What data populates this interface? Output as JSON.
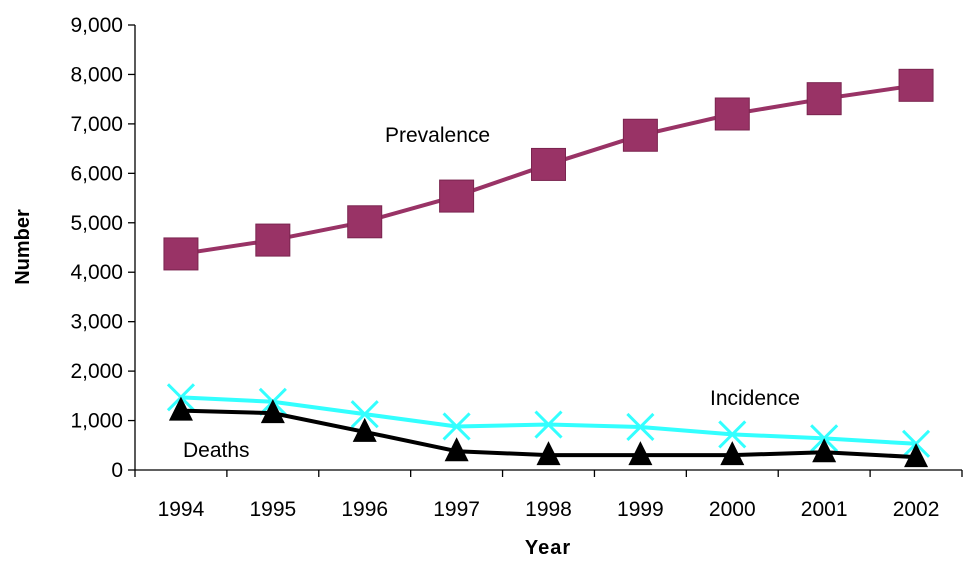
{
  "chart_data": {
    "type": "line",
    "title": "",
    "xlabel": "Year",
    "ylabel": "Number",
    "categories": [
      "1994",
      "1995",
      "1996",
      "1997",
      "1998",
      "1999",
      "2000",
      "2001",
      "2002"
    ],
    "ylim": [
      0,
      9000
    ],
    "yticks": [
      0,
      1000,
      2000,
      3000,
      4000,
      5000,
      6000,
      7000,
      8000,
      9000
    ],
    "ytick_labels": [
      "0",
      "1,000",
      "2,000",
      "3,000",
      "4,000",
      "5,000",
      "6,000",
      "7,000",
      "8,000",
      "9,000"
    ],
    "grid": false,
    "legend": "none",
    "series": [
      {
        "name": "Prevalence",
        "marker": "square",
        "color": "#993366",
        "values": [
          4370,
          4650,
          5020,
          5540,
          6180,
          6770,
          7200,
          7510,
          7780
        ]
      },
      {
        "name": "Incidence",
        "marker": "x",
        "color": "#33ffff",
        "values": [
          1470,
          1380,
          1130,
          880,
          920,
          870,
          720,
          640,
          530
        ]
      },
      {
        "name": "Deaths",
        "marker": "triangle",
        "color": "#000000",
        "values": [
          1200,
          1150,
          770,
          380,
          300,
          300,
          300,
          360,
          260
        ]
      }
    ],
    "annotations": [
      {
        "text": "Prevalence",
        "series": "Prevalence"
      },
      {
        "text": "Incidence",
        "series": "Incidence"
      },
      {
        "text": "Deaths",
        "series": "Deaths"
      }
    ]
  }
}
